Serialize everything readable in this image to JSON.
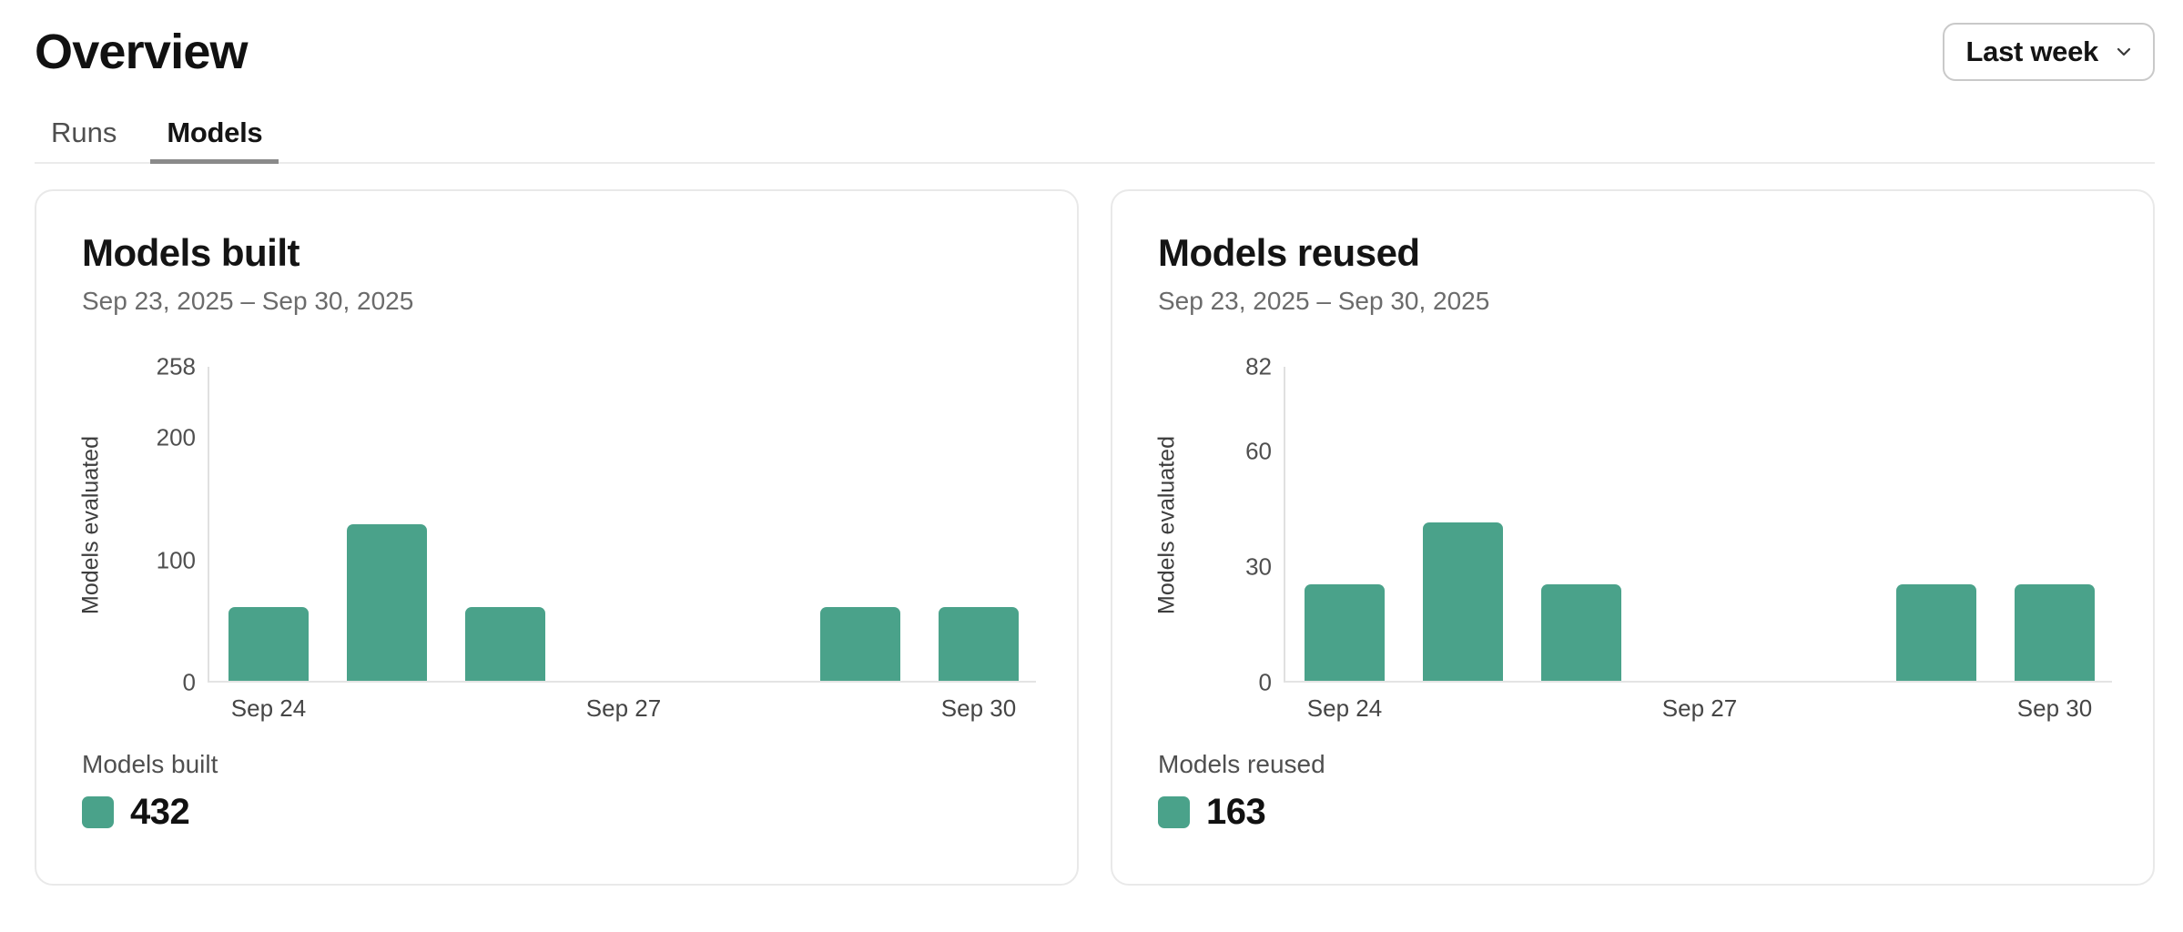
{
  "ui": {
    "page_title": "Overview",
    "range_selector": {
      "label": "Last week",
      "icon": "chevron-down"
    },
    "tabs": [
      {
        "label": "Runs",
        "active": false
      },
      {
        "label": "Models",
        "active": true
      }
    ]
  },
  "colors": {
    "bar": "#4AA28A",
    "axis": "#E4E4E4",
    "tab_underline": "#8A8A8A"
  },
  "chart_data": [
    {
      "type": "bar",
      "title": "Models built",
      "date_range": "Sep 23, 2025 – Sep 30, 2025",
      "ylabel": "Models evaluated",
      "categories": [
        "Sep 24",
        "Sep 25",
        "Sep 26",
        "Sep 27",
        "Sep 28",
        "Sep 29",
        "Sep 30"
      ],
      "values": [
        60,
        128,
        60,
        0,
        0,
        60,
        60
      ],
      "yticks": [
        0,
        100,
        200,
        258
      ],
      "ylim": [
        0,
        258
      ],
      "xticks_shown": [
        "Sep 24",
        "Sep 27",
        "Sep 30"
      ],
      "grid": false,
      "legend_position": "bottom-left",
      "legend": {
        "label": "Models built",
        "total": "432"
      }
    },
    {
      "type": "bar",
      "title": "Models reused",
      "date_range": "Sep 23, 2025 – Sep 30, 2025",
      "ylabel": "Models evaluated",
      "categories": [
        "Sep 24",
        "Sep 25",
        "Sep 26",
        "Sep 27",
        "Sep 28",
        "Sep 29",
        "Sep 30"
      ],
      "values": [
        25,
        41,
        25,
        0,
        0,
        25,
        25
      ],
      "yticks": [
        0,
        30,
        60,
        82
      ],
      "ylim": [
        0,
        82
      ],
      "xticks_shown": [
        "Sep 24",
        "Sep 27",
        "Sep 30"
      ],
      "grid": false,
      "legend_position": "bottom-left",
      "legend": {
        "label": "Models reused",
        "total": "163"
      }
    }
  ]
}
